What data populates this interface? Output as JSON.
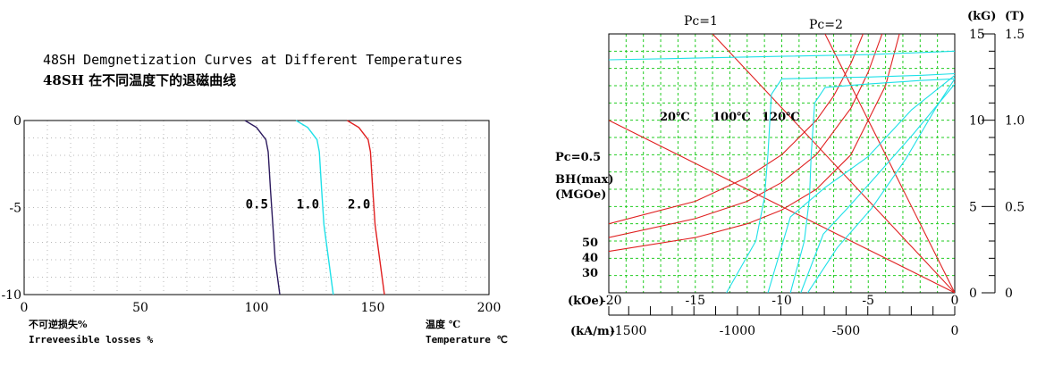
{
  "chart_data": [
    {
      "type": "line",
      "title": "48SH Demgnetization Curves at Different Temperatures",
      "subtitle": "48SH 在不同温度下的退磁曲线",
      "xlabel": "温度 ℃",
      "xlabel_en": "Temperature ℃",
      "ylabel": "不可逆损失%",
      "ylabel_en": "Irreveesible losses %",
      "xlim": [
        0,
        200
      ],
      "ylim": [
        -10,
        0
      ],
      "x_ticks": [
        "0",
        "50",
        "100",
        "150",
        "200"
      ],
      "y_ticks": [
        "0",
        "-5",
        "-10"
      ],
      "grid": true,
      "series": [
        {
          "name": "0.5",
          "color": "#2c1a5e",
          "x": [
            95,
            100,
            104,
            105,
            106,
            107,
            108,
            110
          ],
          "y": [
            0,
            -0.4,
            -1.1,
            -1.8,
            -4,
            -6,
            -8,
            -10
          ]
        },
        {
          "name": "1.0",
          "color": "#1ee0e8",
          "x": [
            117,
            122,
            126,
            127,
            128,
            129,
            131,
            133
          ],
          "y": [
            0,
            -0.4,
            -1.1,
            -1.8,
            -4,
            -6,
            -8,
            -10
          ]
        },
        {
          "name": "2.0",
          "color": "#e02020",
          "x": [
            139,
            144,
            148,
            149,
            150,
            151,
            153,
            155
          ],
          "y": [
            0,
            -0.4,
            -1.1,
            -1.8,
            -4,
            -6,
            -8,
            -10
          ]
        }
      ]
    },
    {
      "type": "line",
      "xlim": [
        -20,
        0
      ],
      "ylim": [
        0,
        15
      ],
      "x_unit_koe": "(kOe)",
      "x_unit_kam": "(kA/m)",
      "x_ticks_koe": [
        "-20",
        "-15",
        "-10",
        "-5",
        "0"
      ],
      "x_ticks_kam": [
        "-1500",
        "-1000",
        "-500",
        "0"
      ],
      "y_unit_kg": "(kG)",
      "y_unit_t": "(T)",
      "y_ticks_kg": [
        "15",
        "10",
        "5",
        "0"
      ],
      "y_ticks_t": [
        "1.5",
        "1.0",
        "0.5",
        "0"
      ],
      "grid": true,
      "labels": {
        "pc1": "Pc=1",
        "pc2": "Pc=2",
        "pc05": "Pc=0.5",
        "bhmax": "BH(max)",
        "mgoe": "(MGOe)",
        "bh50": "50",
        "bh40": "40",
        "bh30": "30",
        "t20": "20℃",
        "t100": "100℃",
        "t120": "120℃"
      },
      "colors": {
        "grid": "#22cc22",
        "bh_curves": "#e02020",
        "pc_lines": "#e02020",
        "demag": "#1ee0e8"
      },
      "pc_lines": [
        {
          "name": "Pc=0.5",
          "x": [
            -20,
            0
          ],
          "y": [
            10,
            0
          ]
        },
        {
          "name": "Pc=1",
          "x": [
            -14,
            0
          ],
          "y": [
            15,
            0
          ]
        },
        {
          "name": "Pc=2",
          "x": [
            -7.5,
            0
          ],
          "y": [
            15,
            0
          ]
        }
      ],
      "bh_curves": [
        {
          "name": "30",
          "x": [
            -20,
            -15,
            -12,
            -10,
            -8,
            -6,
            -4,
            -3.2
          ],
          "y": [
            2.4,
            3.2,
            4.0,
            4.8,
            6.0,
            8.0,
            12.0,
            15
          ]
        },
        {
          "name": "40",
          "x": [
            -20,
            -15,
            -12,
            -10,
            -8,
            -6,
            -5,
            -4.2
          ],
          "y": [
            3.2,
            4.3,
            5.3,
            6.4,
            8.0,
            10.7,
            12.8,
            15
          ]
        },
        {
          "name": "50",
          "x": [
            -20,
            -15,
            -12,
            -10,
            -8,
            -7,
            -6,
            -5.3
          ],
          "y": [
            4.0,
            5.3,
            6.7,
            8.0,
            10.0,
            11.4,
            13.3,
            15
          ]
        }
      ],
      "demag_curves": [
        {
          "name": "20℃",
          "x": [
            0,
            -5,
            -10,
            -15,
            -20
          ],
          "y": [
            14.0,
            13.8,
            13.7,
            13.6,
            13.5
          ]
        },
        {
          "name": "100℃",
          "x": [
            -13.2,
            -11.5,
            -11.0,
            -10.8,
            -10.6,
            -10.0,
            -8,
            -5,
            -2,
            0
          ],
          "y": [
            0,
            3.0,
            5.5,
            8.0,
            11.5,
            12.4,
            12.45,
            12.5,
            12.6,
            12.7
          ]
        },
        {
          "name": "120℃",
          "x": [
            -9.5,
            -8.7,
            -8.4,
            -8.3,
            -8.1,
            -7.5,
            -5,
            -2,
            0
          ],
          "y": [
            0,
            3.0,
            5.5,
            8.0,
            11.0,
            11.9,
            12.1,
            12.3,
            12.4
          ]
        },
        {
          "name": "B-H 100℃",
          "x": [
            -10.8,
            -9.5,
            -7.5,
            -5,
            -2.5,
            0
          ],
          "y": [
            0,
            4.4,
            6.1,
            7.9,
            10.6,
            12.6
          ]
        },
        {
          "name": "B-H 120℃",
          "x": [
            -8.9,
            -7.6,
            -6.2,
            -4.6,
            -2.4,
            0
          ],
          "y": [
            0,
            3.4,
            4.9,
            6.7,
            9.2,
            12.1
          ]
        },
        {
          "name": "B-H 120℃ alt",
          "x": [
            -8.5,
            -6.8,
            -4.8,
            -2.8,
            -1.1,
            0
          ],
          "y": [
            0,
            2.6,
            4.9,
            7.8,
            10.7,
            12.4
          ]
        }
      ]
    }
  ]
}
